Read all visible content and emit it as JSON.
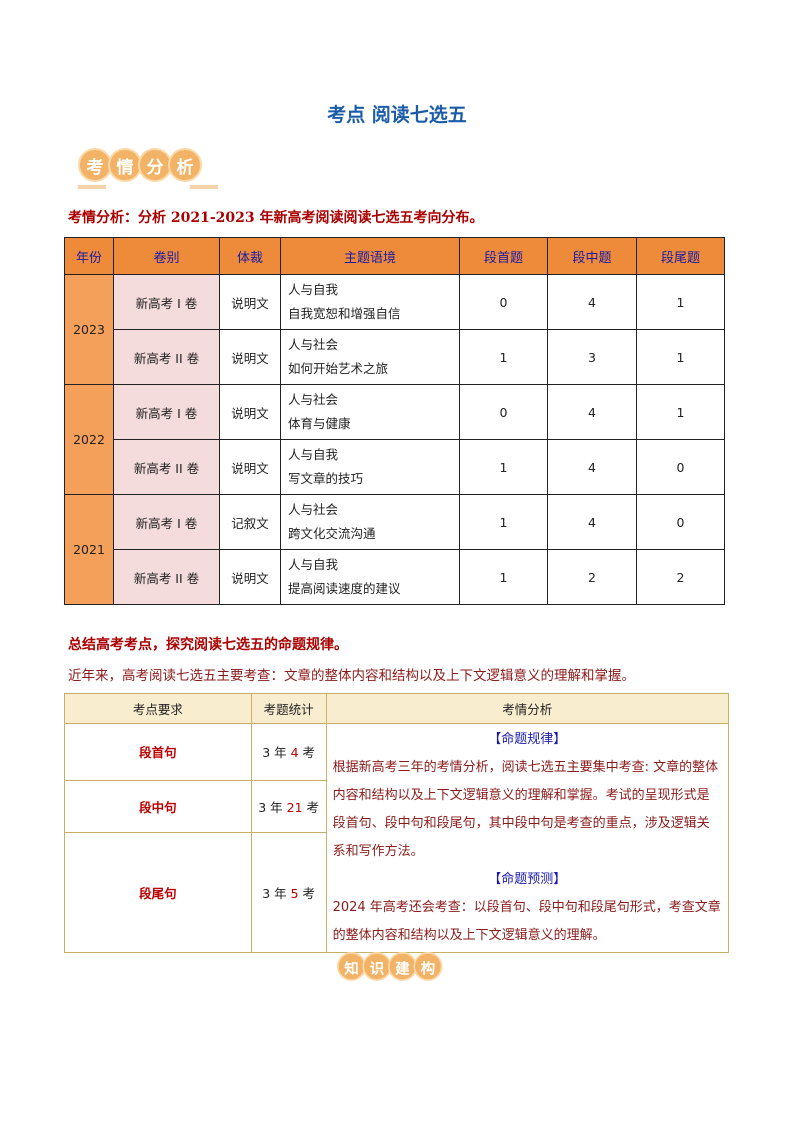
{
  "title": "考点 阅读七选五",
  "badge1": [
    "考",
    "情",
    "分",
    "析"
  ],
  "intro1": "考情分析：分析 2021-2023 年新高考阅读阅读七选五考向分布。",
  "table1": {
    "headers": [
      "年份",
      "卷别",
      "体裁",
      "主题语境",
      "段首题",
      "段中题",
      "段尾题"
    ],
    "groups": [
      {
        "year": "2023",
        "rows": [
          {
            "paper": "新高考 I 卷",
            "genre": "说明文",
            "theme1": "人与自我",
            "theme2": "自我宽恕和增强自信",
            "first": "0",
            "middle": "4",
            "last": "1"
          },
          {
            "paper": "新高考 II 卷",
            "genre": "说明文",
            "theme1": "人与社会",
            "theme2": "如何开始艺术之旅",
            "first": "1",
            "middle": "3",
            "last": "1"
          }
        ]
      },
      {
        "year": "2022",
        "rows": [
          {
            "paper": "新高考 I 卷",
            "genre": "说明文",
            "theme1": "人与社会",
            "theme2": "体育与健康",
            "first": "0",
            "middle": "4",
            "last": "1"
          },
          {
            "paper": "新高考 II 卷",
            "genre": "说明文",
            "theme1": "人与自我",
            "theme2": "写文章的技巧",
            "first": "1",
            "middle": "4",
            "last": "0"
          }
        ]
      },
      {
        "year": "2021",
        "rows": [
          {
            "paper": "新高考 I 卷",
            "genre": "记叙文",
            "theme1": "人与社会",
            "theme2": "跨文化交流沟通",
            "first": "1",
            "middle": "4",
            "last": "0"
          },
          {
            "paper": "新高考 II 卷",
            "genre": "说明文",
            "theme1": "人与自我",
            "theme2": "提高阅读速度的建议",
            "first": "1",
            "middle": "2",
            "last": "2"
          }
        ]
      }
    ]
  },
  "intro2": "总结高考考点，探究阅读七选五的命题规律。",
  "intro3": "近年来，高考阅读七选五主要考查：文章的整体内容和结构以及上下文逻辑意义的理解和掌握。",
  "table2": {
    "headers": [
      "考点要求",
      "考题统计",
      "考情分析"
    ],
    "rows": [
      {
        "k": "段首句",
        "s1": "3 年 ",
        "n": "4",
        "s2": " 考"
      },
      {
        "k": "段中句",
        "s1": "3 年 ",
        "n": "21",
        "s2": " 考"
      },
      {
        "k": "段尾句",
        "s1": "3 年 ",
        "n": "5",
        "s2": " 考"
      }
    ],
    "h1": "【命题规律】",
    "p1": "根据新高考三年的考情分析，阅读七选五主要集中考查: 文章的整体内容和结构以及上下文逻辑意义的理解和掌握。考试的呈现形式是段首句、段中句和段尾句，其中段中句是考查的重点，涉及逻辑关系和写作方法。",
    "h2": "【命题预测】",
    "p2": "2024 年高考还会考查：以段首句、段中句和段尾句形式，考查文章的整体内容和结构以及上下文逻辑意义的理解。"
  },
  "badge2": [
    "知",
    "识",
    "建",
    "构"
  ]
}
